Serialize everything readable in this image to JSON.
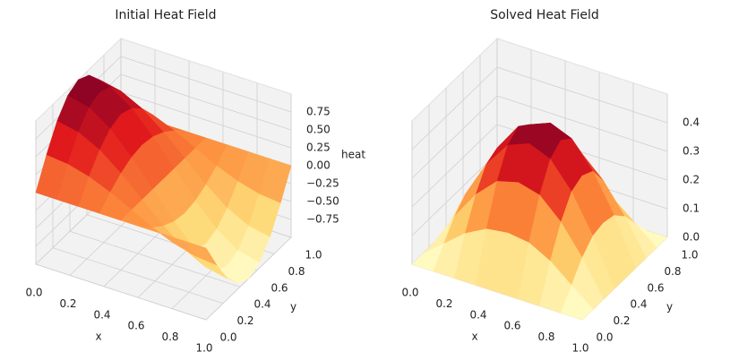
{
  "chart_data": [
    {
      "type": "surface",
      "title": "Initial Heat Field",
      "xlabel": "x",
      "ylabel": "y",
      "zlabel": "heat",
      "x": [
        0,
        0.125,
        0.25,
        0.375,
        0.5,
        0.625,
        0.75,
        0.875,
        1
      ],
      "y": [
        0,
        0.125,
        0.25,
        0.375,
        0.5,
        0.625,
        0.75,
        0.875,
        1
      ],
      "z": [
        [
          0,
          0,
          0,
          0,
          0,
          0,
          0,
          0,
          0
        ],
        [
          0.38,
          0.35,
          0.27,
          0.15,
          0,
          -0.15,
          -0.27,
          -0.35,
          -0.38
        ],
        [
          0.71,
          0.65,
          0.5,
          0.27,
          0,
          -0.27,
          -0.5,
          -0.65,
          -0.71
        ],
        [
          0.92,
          0.85,
          0.65,
          0.35,
          0,
          -0.35,
          -0.65,
          -0.85,
          -0.92
        ],
        [
          1,
          0.92,
          0.71,
          0.38,
          0,
          -0.38,
          -0.71,
          -0.92,
          -1
        ],
        [
          0.92,
          0.85,
          0.65,
          0.35,
          0,
          -0.35,
          -0.65,
          -0.85,
          -0.92
        ],
        [
          0.71,
          0.65,
          0.5,
          0.27,
          0,
          -0.27,
          -0.5,
          -0.65,
          -0.71
        ],
        [
          0.38,
          0.35,
          0.27,
          0.15,
          0,
          -0.15,
          -0.27,
          -0.35,
          -0.38
        ],
        [
          0,
          0,
          0,
          0,
          0,
          0,
          0,
          0,
          0
        ]
      ],
      "colormap": [
        "#ffffcc",
        "#fed976",
        "#fd8d3c",
        "#e31a1c",
        "#800026"
      ],
      "xlim": [
        0,
        1
      ],
      "ylim": [
        0,
        1
      ],
      "zlim": [
        -1,
        1
      ],
      "xticks": [
        {
          "value": 0,
          "label": "0.0"
        },
        0.2,
        0.4,
        0.6,
        0.8,
        {
          "value": 1,
          "label": "1.0"
        }
      ],
      "yticks": [
        {
          "value": 0,
          "label": "0.0"
        },
        0.2,
        0.4,
        0.6,
        0.8,
        {
          "value": 1,
          "label": "1.0"
        }
      ],
      "zticks": [
        {
          "value": -0.75,
          "label": "−0.75"
        },
        {
          "value": -0.5,
          "label": "−0.50"
        },
        {
          "value": -0.25,
          "label": "−0.25"
        },
        {
          "value": 0,
          "label": "0.00"
        },
        {
          "value": 0.25,
          "label": "0.25"
        },
        {
          "value": 0.5,
          "label": "0.50"
        },
        {
          "value": 0.75,
          "label": "0.75"
        }
      ],
      "grid": true
    },
    {
      "type": "surface",
      "title": "Solved Heat Field",
      "xlabel": "x",
      "ylabel": "y",
      "x": [
        0,
        0.125,
        0.25,
        0.375,
        0.5,
        0.625,
        0.75,
        0.875,
        1
      ],
      "y": [
        0,
        0.125,
        0.25,
        0.375,
        0.5,
        0.625,
        0.75,
        0.875,
        1
      ],
      "z": [
        [
          0,
          0,
          0,
          0,
          0,
          0,
          0,
          0,
          0
        ],
        [
          0,
          0.06,
          0.12,
          0.16,
          0.17,
          0.16,
          0.12,
          0.06,
          0
        ],
        [
          0,
          0.12,
          0.22,
          0.29,
          0.31,
          0.29,
          0.22,
          0.12,
          0
        ],
        [
          0,
          0.16,
          0.29,
          0.38,
          0.41,
          0.38,
          0.29,
          0.16,
          0
        ],
        [
          0,
          0.17,
          0.31,
          0.41,
          0.44,
          0.41,
          0.31,
          0.17,
          0
        ],
        [
          0,
          0.16,
          0.29,
          0.38,
          0.41,
          0.38,
          0.29,
          0.16,
          0
        ],
        [
          0,
          0.12,
          0.22,
          0.29,
          0.31,
          0.29,
          0.22,
          0.12,
          0
        ],
        [
          0,
          0.06,
          0.12,
          0.16,
          0.17,
          0.16,
          0.12,
          0.06,
          0
        ],
        [
          0,
          0,
          0,
          0,
          0,
          0,
          0,
          0,
          0
        ]
      ],
      "colormap": [
        "#ffffcc",
        "#fed976",
        "#fd8d3c",
        "#e31a1c",
        "#800026"
      ],
      "xlim": [
        0,
        1
      ],
      "ylim": [
        0,
        1
      ],
      "zlim": [
        0,
        0.5
      ],
      "xticks": [
        {
          "value": 0,
          "label": "0.0"
        },
        0.2,
        0.4,
        0.6,
        0.8,
        {
          "value": 1,
          "label": "1.0"
        }
      ],
      "yticks": [
        {
          "value": 0,
          "label": "0.0"
        },
        0.2,
        0.4,
        0.6,
        0.8,
        {
          "value": 1,
          "label": "1.0"
        }
      ],
      "zticks": [
        {
          "value": 0,
          "label": "0.0"
        },
        0.1,
        0.2,
        0.3,
        0.4
      ],
      "grid": true
    }
  ]
}
